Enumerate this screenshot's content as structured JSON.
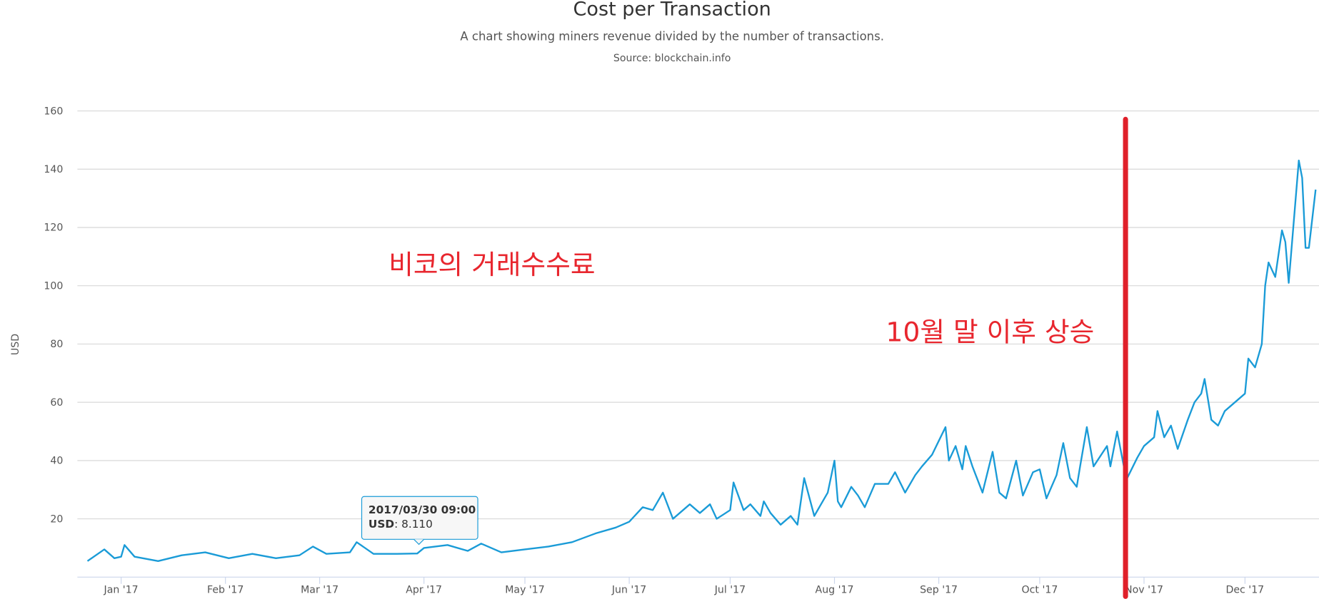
{
  "chart_data": {
    "type": "line",
    "title": "Cost per Transaction",
    "subtitle": "A chart showing miners revenue divided by the number of transactions.",
    "source": "Source: blockchain.info",
    "ylabel": "USD",
    "annotations": [
      "비코의 거래수수료",
      "10월 말 이후 상승"
    ],
    "tooltip": {
      "date": "2017/03/30 09:00",
      "value": "8.110"
    },
    "xlim": [
      "2016-12-19",
      "2017-12-23"
    ],
    "xticks": [
      {
        "value": "2017-01-01",
        "label": "Jan '17"
      },
      {
        "value": "2017-02-01",
        "label": "Feb '17"
      },
      {
        "value": "2017-03-01",
        "label": "Mar '17"
      },
      {
        "value": "2017-04-01",
        "label": "Apr '17"
      },
      {
        "value": "2017-05-01",
        "label": "May '17"
      },
      {
        "value": "2017-06-01",
        "label": "Jun '17"
      },
      {
        "value": "2017-07-01",
        "label": "Jul '17"
      },
      {
        "value": "2017-08-01",
        "label": "Aug '17"
      },
      {
        "value": "2017-09-01",
        "label": "Sep '17"
      },
      {
        "value": "2017-10-01",
        "label": "Oct '17"
      },
      {
        "value": "2017-11-01",
        "label": "Nov '17"
      },
      {
        "value": "2017-12-01",
        "label": "Dec '17"
      }
    ],
    "ylim": [
      0,
      160
    ],
    "yticks": [
      20,
      40,
      60,
      80,
      100,
      120,
      140,
      160
    ],
    "grid": true,
    "x": [
      "2016-12-22",
      "2016-12-27",
      "2016-12-30",
      "2017-01-01",
      "2017-01-02",
      "2017-01-05",
      "2017-01-12",
      "2017-01-19",
      "2017-01-26",
      "2017-02-02",
      "2017-02-09",
      "2017-02-16",
      "2017-02-23",
      "2017-02-27",
      "2017-03-03",
      "2017-03-10",
      "2017-03-12",
      "2017-03-17",
      "2017-03-24",
      "2017-03-30",
      "2017-04-01",
      "2017-04-08",
      "2017-04-14",
      "2017-04-18",
      "2017-04-24",
      "2017-05-01",
      "2017-05-08",
      "2017-05-15",
      "2017-05-22",
      "2017-05-28",
      "2017-06-01",
      "2017-06-05",
      "2017-06-08",
      "2017-06-11",
      "2017-06-14",
      "2017-06-19",
      "2017-06-22",
      "2017-06-25",
      "2017-06-27",
      "2017-07-01",
      "2017-07-02",
      "2017-07-05",
      "2017-07-07",
      "2017-07-10",
      "2017-07-11",
      "2017-07-13",
      "2017-07-16",
      "2017-07-19",
      "2017-07-21",
      "2017-07-23",
      "2017-07-26",
      "2017-07-30",
      "2017-08-01",
      "2017-08-02",
      "2017-08-03",
      "2017-08-06",
      "2017-08-08",
      "2017-08-10",
      "2017-08-13",
      "2017-08-17",
      "2017-08-19",
      "2017-08-22",
      "2017-08-25",
      "2017-08-27",
      "2017-08-30",
      "2017-09-03",
      "2017-09-04",
      "2017-09-06",
      "2017-09-08",
      "2017-09-09",
      "2017-09-11",
      "2017-09-14",
      "2017-09-17",
      "2017-09-19",
      "2017-09-21",
      "2017-09-24",
      "2017-09-26",
      "2017-09-29",
      "2017-10-01",
      "2017-10-03",
      "2017-10-06",
      "2017-10-08",
      "2017-10-10",
      "2017-10-12",
      "2017-10-13",
      "2017-10-15",
      "2017-10-17",
      "2017-10-21",
      "2017-10-22",
      "2017-10-24",
      "2017-10-26",
      "2017-10-27",
      "2017-10-30",
      "2017-11-01",
      "2017-11-04",
      "2017-11-05",
      "2017-11-07",
      "2017-11-09",
      "2017-11-11",
      "2017-11-14",
      "2017-11-16",
      "2017-11-18",
      "2017-11-19",
      "2017-11-21",
      "2017-11-23",
      "2017-11-25",
      "2017-11-28",
      "2017-12-01",
      "2017-12-02",
      "2017-12-04",
      "2017-12-06",
      "2017-12-07",
      "2017-12-08",
      "2017-12-10",
      "2017-12-12",
      "2017-12-13",
      "2017-12-14",
      "2017-12-17",
      "2017-12-18",
      "2017-12-19",
      "2017-12-20",
      "2017-12-22"
    ],
    "series": [
      {
        "name": "USD",
        "color": "#1a9bd7",
        "values": [
          5.5,
          9.5,
          6.5,
          7,
          11,
          7,
          5.5,
          7.5,
          8.5,
          6.5,
          8,
          6.5,
          7.5,
          10.5,
          8,
          8.5,
          12,
          8,
          8,
          8.11,
          10,
          11,
          9,
          11.5,
          8.5,
          9.5,
          10.5,
          12,
          15,
          17,
          19,
          24,
          23,
          29,
          20,
          25,
          22,
          25,
          20,
          23,
          32.5,
          23,
          25,
          21,
          26,
          22,
          18,
          21,
          18,
          34,
          21,
          29,
          40,
          26,
          24,
          31,
          28,
          24,
          32,
          32,
          36,
          29,
          35,
          38,
          42,
          51.5,
          40,
          45,
          37,
          45,
          38,
          29,
          43,
          29,
          27,
          40,
          28,
          36,
          37,
          27,
          35,
          46,
          34,
          31,
          38,
          51.5,
          38,
          45,
          38,
          50,
          38,
          34,
          41,
          45,
          48,
          57,
          48,
          52,
          44,
          54,
          60,
          63,
          68,
          54,
          52,
          57,
          60,
          63,
          75,
          72,
          80,
          100,
          108,
          103,
          119,
          115,
          101,
          143,
          137,
          113,
          113,
          133
        ]
      }
    ]
  }
}
